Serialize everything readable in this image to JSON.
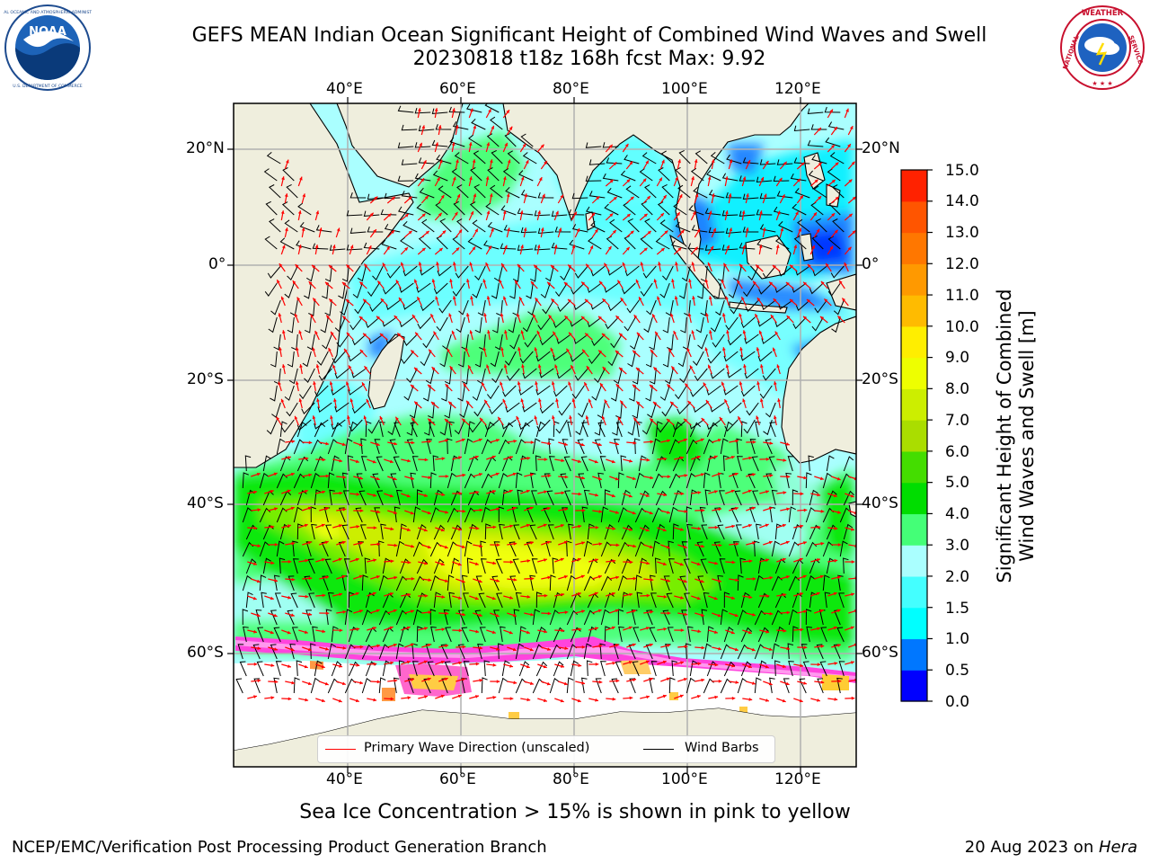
{
  "header": {
    "title_line1": "GEFS MEAN Indian Ocean Significant Height of Combined Wind Waves and Swell",
    "title_line2": "20230818 t18z 168h fcst   Max: 9.92"
  },
  "logos": {
    "noaa": {
      "center_text": "NOAA",
      "ring_text": "NATIONAL OCEANIC AND ATMOSPHERIC ADMINISTRATION · U.S. DEPARTMENT OF COMMERCE"
    },
    "nws": {
      "ring_text": "NATIONAL WEATHER SERVICE"
    }
  },
  "map": {
    "lon_labels": [
      "40°E",
      "60°E",
      "80°E",
      "100°E",
      "120°E"
    ],
    "lat_labels": [
      "20°N",
      "0°",
      "20°S",
      "40°S",
      "60°S"
    ],
    "colors": {
      "land": "#efeedd",
      "ice_free": "#ffffff",
      "sea_ice": [
        "#ff33cc",
        "#ff66ee",
        "#ffcc33",
        "#ffee66"
      ],
      "wave_arrow": "#ff0000",
      "wind_barb": "#000000"
    }
  },
  "colorbar": {
    "title_line1": "Significant Height of Combined",
    "title_line2": "Wind Waves and Swell [m]",
    "tick_labels": [
      "0.0",
      "0.5",
      "1.0",
      "1.5",
      "2.0",
      "3.0",
      "4.0",
      "5.0",
      "6.0",
      "7.0",
      "8.0",
      "9.0",
      "10.0",
      "11.0",
      "12.0",
      "13.0",
      "14.0",
      "15.0"
    ],
    "colors": [
      "#0000ff",
      "#0077ff",
      "#00ffff",
      "#44ffff",
      "#aaffff",
      "#44ff77",
      "#00dd00",
      "#44dd00",
      "#aadd00",
      "#ccee00",
      "#eeff00",
      "#ffee00",
      "#ffbb00",
      "#ff9900",
      "#ff7700",
      "#ff5500",
      "#ff2200"
    ]
  },
  "legend": {
    "wave_label": "Primary Wave Direction (unscaled)",
    "wind_label": "Wind Barbs"
  },
  "footer": {
    "note": "Sea Ice Concentration > 15% is shown in pink to yellow",
    "left": "NCEP/EMC/Verification Post Processing Product Generation Branch",
    "date": "20 Aug 2023 on ",
    "host": "Hera"
  }
}
